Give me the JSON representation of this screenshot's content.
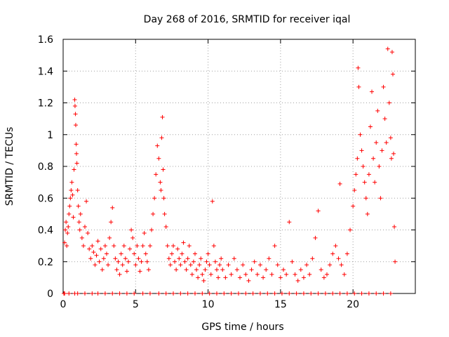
{
  "chart_data": {
    "type": "scatter",
    "title": "Day 268 of 2016, SRMTID for receiver iqal",
    "xlabel": "GPS time / hours",
    "ylabel": "SRMTID / TECUs",
    "xlim": [
      0,
      24.3
    ],
    "ylim": [
      0,
      1.6
    ],
    "xticks": [
      0,
      5,
      10,
      15,
      20
    ],
    "xtick_labels": [
      "0",
      "5",
      "10",
      "15",
      "20"
    ],
    "yticks": [
      0,
      0.2,
      0.4,
      0.6,
      0.8,
      1,
      1.2,
      1.4,
      1.6
    ],
    "ytick_labels": [
      "0",
      "0.2",
      "0.4",
      "0.6",
      "0.8",
      "1",
      "1.2",
      "1.4",
      "1.6"
    ],
    "grid": true,
    "marker": "+",
    "marker_color": "#ff0000",
    "series": [
      {
        "name": "SRMTID",
        "points": [
          [
            0.1,
            0.32
          ],
          [
            0.15,
            0.4
          ],
          [
            0.2,
            0.45
          ],
          [
            0.25,
            0.3
          ],
          [
            0.3,
            0.38
          ],
          [
            0.35,
            0.42
          ],
          [
            0.4,
            0.5
          ],
          [
            0.45,
            0.55
          ],
          [
            0.5,
            0.6
          ],
          [
            0.55,
            0.65
          ],
          [
            0.6,
            0.7
          ],
          [
            0.65,
            0.62
          ],
          [
            0.7,
            0.48
          ],
          [
            0.75,
            0.78
          ],
          [
            0.8,
            1.22
          ],
          [
            0.82,
            1.18
          ],
          [
            0.85,
            1.13
          ],
          [
            0.87,
            1.06
          ],
          [
            0.9,
            0.94
          ],
          [
            0.92,
            0.88
          ],
          [
            0.95,
            0.82
          ],
          [
            1.0,
            0.65
          ],
          [
            1.05,
            0.55
          ],
          [
            1.1,
            0.45
          ],
          [
            1.15,
            0.4
          ],
          [
            1.2,
            0.5
          ],
          [
            1.3,
            0.35
          ],
          [
            1.4,
            0.3
          ],
          [
            1.5,
            0.42
          ],
          [
            1.6,
            0.58
          ],
          [
            1.7,
            0.38
          ],
          [
            1.8,
            0.28
          ],
          [
            1.9,
            0.22
          ],
          [
            2.0,
            0.3
          ],
          [
            2.1,
            0.26
          ],
          [
            2.2,
            0.18
          ],
          [
            2.3,
            0.24
          ],
          [
            2.4,
            0.33
          ],
          [
            2.5,
            0.2
          ],
          [
            2.6,
            0.28
          ],
          [
            2.7,
            0.15
          ],
          [
            2.8,
            0.22
          ],
          [
            2.9,
            0.3
          ],
          [
            3.0,
            0.25
          ],
          [
            3.1,
            0.18
          ],
          [
            3.2,
            0.35
          ],
          [
            3.3,
            0.45
          ],
          [
            3.4,
            0.54
          ],
          [
            3.5,
            0.3
          ],
          [
            3.6,
            0.22
          ],
          [
            3.7,
            0.15
          ],
          [
            3.8,
            0.2
          ],
          [
            3.9,
            0.12
          ],
          [
            4.0,
            0.25
          ],
          [
            4.1,
            0.18
          ],
          [
            4.2,
            0.3
          ],
          [
            4.3,
            0.22
          ],
          [
            4.4,
            0.14
          ],
          [
            4.5,
            0.2
          ],
          [
            4.6,
            0.28
          ],
          [
            4.7,
            0.4
          ],
          [
            4.8,
            0.35
          ],
          [
            4.9,
            0.25
          ],
          [
            5.0,
            0.18
          ],
          [
            5.1,
            0.3
          ],
          [
            5.2,
            0.22
          ],
          [
            5.3,
            0.14
          ],
          [
            5.4,
            0.2
          ],
          [
            5.5,
            0.3
          ],
          [
            5.6,
            0.38
          ],
          [
            5.7,
            0.25
          ],
          [
            5.8,
            0.2
          ],
          [
            5.9,
            0.15
          ],
          [
            6.0,
            0.3
          ],
          [
            6.1,
            0.4
          ],
          [
            6.2,
            0.5
          ],
          [
            6.3,
            0.6
          ],
          [
            6.4,
            0.75
          ],
          [
            6.5,
            0.93
          ],
          [
            6.6,
            0.85
          ],
          [
            6.7,
            0.7
          ],
          [
            6.75,
            0.65
          ],
          [
            6.8,
            0.98
          ],
          [
            6.85,
            1.11
          ],
          [
            6.9,
            0.78
          ],
          [
            6.95,
            0.6
          ],
          [
            7.0,
            0.5
          ],
          [
            7.1,
            0.42
          ],
          [
            7.2,
            0.3
          ],
          [
            7.3,
            0.22
          ],
          [
            7.4,
            0.18
          ],
          [
            7.5,
            0.25
          ],
          [
            7.6,
            0.3
          ],
          [
            7.7,
            0.2
          ],
          [
            7.8,
            0.15
          ],
          [
            7.9,
            0.28
          ],
          [
            8.0,
            0.22
          ],
          [
            8.1,
            0.18
          ],
          [
            8.2,
            0.25
          ],
          [
            8.3,
            0.32
          ],
          [
            8.4,
            0.2
          ],
          [
            8.5,
            0.15
          ],
          [
            8.6,
            0.22
          ],
          [
            8.7,
            0.3
          ],
          [
            8.8,
            0.18
          ],
          [
            8.9,
            0.12
          ],
          [
            9.0,
            0.2
          ],
          [
            9.1,
            0.25
          ],
          [
            9.2,
            0.15
          ],
          [
            9.3,
            0.1
          ],
          [
            9.4,
            0.18
          ],
          [
            9.5,
            0.22
          ],
          [
            9.6,
            0.12
          ],
          [
            9.7,
            0.08
          ],
          [
            9.8,
            0.15
          ],
          [
            9.9,
            0.2
          ],
          [
            10.0,
            0.25
          ],
          [
            10.1,
            0.18
          ],
          [
            10.2,
            0.12
          ],
          [
            10.3,
            0.58
          ],
          [
            10.4,
            0.3
          ],
          [
            10.5,
            0.2
          ],
          [
            10.6,
            0.15
          ],
          [
            10.7,
            0.1
          ],
          [
            10.8,
            0.18
          ],
          [
            10.9,
            0.22
          ],
          [
            11.0,
            0.15
          ],
          [
            11.2,
            0.1
          ],
          [
            11.4,
            0.18
          ],
          [
            11.6,
            0.12
          ],
          [
            11.8,
            0.22
          ],
          [
            12.0,
            0.15
          ],
          [
            12.2,
            0.1
          ],
          [
            12.4,
            0.18
          ],
          [
            12.6,
            0.12
          ],
          [
            12.8,
            0.08
          ],
          [
            13.0,
            0.15
          ],
          [
            13.2,
            0.2
          ],
          [
            13.4,
            0.12
          ],
          [
            13.6,
            0.18
          ],
          [
            13.8,
            0.1
          ],
          [
            14.0,
            0.15
          ],
          [
            14.2,
            0.22
          ],
          [
            14.4,
            0.12
          ],
          [
            14.6,
            0.3
          ],
          [
            14.8,
            0.18
          ],
          [
            15.0,
            0.1
          ],
          [
            15.2,
            0.15
          ],
          [
            15.4,
            0.12
          ],
          [
            15.6,
            0.45
          ],
          [
            15.8,
            0.2
          ],
          [
            16.0,
            0.12
          ],
          [
            16.2,
            0.08
          ],
          [
            16.4,
            0.15
          ],
          [
            16.6,
            0.1
          ],
          [
            16.8,
            0.18
          ],
          [
            17.0,
            0.12
          ],
          [
            17.2,
            0.22
          ],
          [
            17.4,
            0.35
          ],
          [
            17.6,
            0.52
          ],
          [
            17.8,
            0.15
          ],
          [
            18.0,
            0.1
          ],
          [
            18.2,
            0.12
          ],
          [
            18.4,
            0.18
          ],
          [
            18.6,
            0.25
          ],
          [
            18.8,
            0.3
          ],
          [
            19.0,
            0.22
          ],
          [
            19.1,
            0.69
          ],
          [
            19.2,
            0.18
          ],
          [
            19.4,
            0.12
          ],
          [
            19.6,
            0.25
          ],
          [
            19.8,
            0.4
          ],
          [
            20.0,
            0.55
          ],
          [
            20.1,
            0.65
          ],
          [
            20.2,
            0.75
          ],
          [
            20.3,
            0.85
          ],
          [
            20.35,
            1.42
          ],
          [
            20.4,
            1.3
          ],
          [
            20.5,
            1.0
          ],
          [
            20.6,
            0.9
          ],
          [
            20.7,
            0.8
          ],
          [
            20.8,
            0.7
          ],
          [
            20.9,
            0.6
          ],
          [
            21.0,
            0.5
          ],
          [
            21.1,
            0.75
          ],
          [
            21.2,
            1.05
          ],
          [
            21.3,
            1.27
          ],
          [
            21.4,
            0.85
          ],
          [
            21.5,
            0.7
          ],
          [
            21.6,
            0.95
          ],
          [
            21.7,
            1.15
          ],
          [
            21.8,
            0.8
          ],
          [
            21.9,
            0.6
          ],
          [
            22.0,
            0.9
          ],
          [
            22.1,
            1.3
          ],
          [
            22.2,
            1.1
          ],
          [
            22.3,
            0.95
          ],
          [
            22.4,
            1.54
          ],
          [
            22.5,
            1.2
          ],
          [
            22.6,
            0.98
          ],
          [
            22.65,
            0.85
          ],
          [
            22.7,
            1.52
          ],
          [
            22.75,
            1.38
          ],
          [
            22.8,
            0.88
          ],
          [
            22.85,
            0.42
          ],
          [
            22.9,
            0.2
          ]
        ]
      },
      {
        "name": "baseline-zero",
        "points": [
          [
            0.05,
            0
          ],
          [
            0.1,
            0
          ],
          [
            0.4,
            0
          ],
          [
            0.8,
            0
          ],
          [
            1.0,
            0
          ],
          [
            1.5,
            0
          ],
          [
            2.0,
            0
          ],
          [
            2.4,
            0
          ],
          [
            2.9,
            0
          ],
          [
            3.4,
            0
          ],
          [
            3.9,
            0
          ],
          [
            4.4,
            0
          ],
          [
            4.9,
            0
          ],
          [
            5.5,
            0
          ],
          [
            6.0,
            0
          ],
          [
            6.6,
            0
          ],
          [
            7.1,
            0
          ],
          [
            7.6,
            0
          ],
          [
            8.1,
            0
          ],
          [
            8.6,
            0
          ],
          [
            9.1,
            0
          ],
          [
            9.6,
            0
          ],
          [
            10.1,
            0
          ],
          [
            10.6,
            0
          ],
          [
            11.1,
            0
          ],
          [
            11.6,
            0
          ],
          [
            12.1,
            0
          ],
          [
            12.6,
            0
          ],
          [
            13.1,
            0
          ],
          [
            13.6,
            0
          ],
          [
            14.1,
            0
          ],
          [
            14.6,
            0
          ],
          [
            15.1,
            0
          ],
          [
            15.6,
            0
          ],
          [
            16.1,
            0
          ],
          [
            16.6,
            0
          ],
          [
            17.1,
            0
          ],
          [
            17.6,
            0
          ],
          [
            18.1,
            0
          ],
          [
            18.6,
            0
          ],
          [
            19.1,
            0
          ],
          [
            19.6,
            0
          ],
          [
            20.1,
            0
          ],
          [
            20.6,
            0
          ],
          [
            21.1,
            0
          ],
          [
            21.6,
            0
          ],
          [
            22.1,
            0
          ],
          [
            22.6,
            0
          ]
        ]
      }
    ]
  }
}
